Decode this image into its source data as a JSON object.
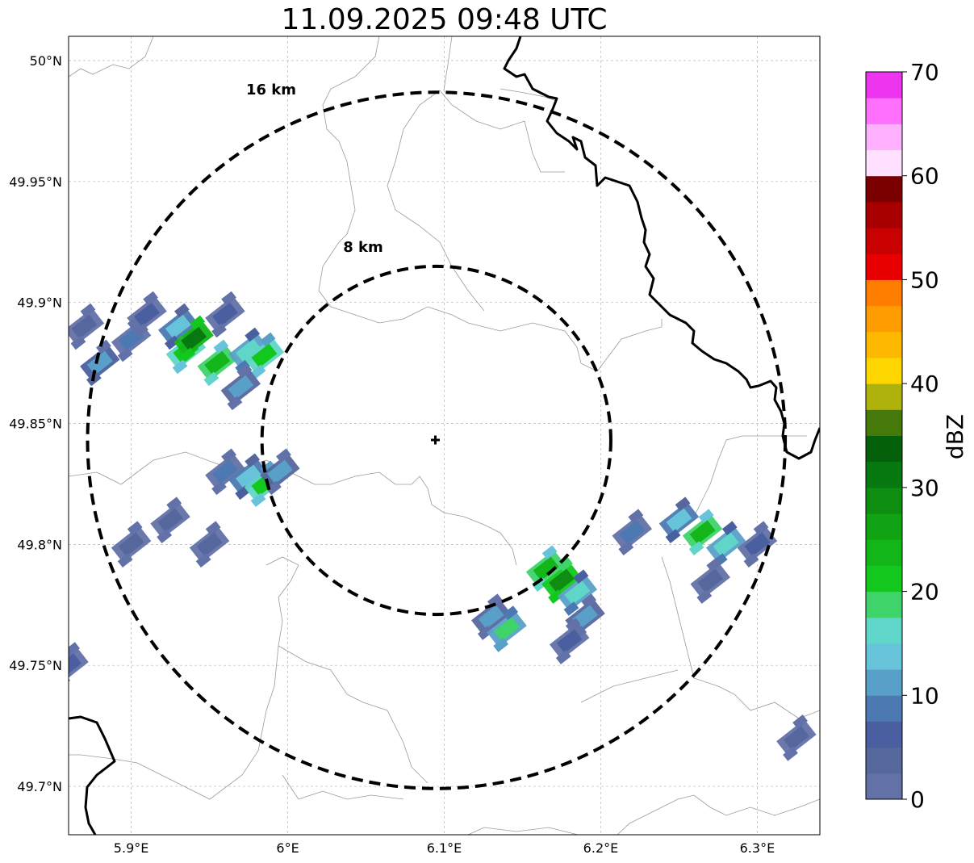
{
  "title": "11.09.2025 09:48 UTC",
  "map": {
    "lon_range": [
      5.86,
      6.34
    ],
    "lat_range": [
      49.68,
      50.01
    ],
    "lon_ticks": [
      {
        "value": 5.9,
        "label": "5.9°E"
      },
      {
        "value": 6.0,
        "label": "6°E"
      },
      {
        "value": 6.1,
        "label": "6.1°E"
      },
      {
        "value": 6.2,
        "label": "6.2°E"
      },
      {
        "value": 6.3,
        "label": "6.3°E"
      }
    ],
    "lat_ticks": [
      {
        "value": 49.7,
        "label": "49.7°N"
      },
      {
        "value": 49.75,
        "label": "49.75°N"
      },
      {
        "value": 49.8,
        "label": "49.8°N"
      },
      {
        "value": 49.85,
        "label": "49.85°N"
      },
      {
        "value": 49.9,
        "label": "49.9°N"
      },
      {
        "value": 49.95,
        "label": "49.95°N"
      },
      {
        "value": 50.0,
        "label": "50°N"
      }
    ],
    "center": {
      "lon": 6.095,
      "lat": 49.843,
      "marker": "plus"
    },
    "rings": [
      {
        "radius_km": 8,
        "label": "8 km"
      },
      {
        "radius_km": 16,
        "label": "16 km"
      }
    ],
    "echo_cells": [
      {
        "lon": 5.87,
        "lat": 49.89,
        "dbz": 4
      },
      {
        "lon": 5.88,
        "lat": 49.875,
        "dbz": 12
      },
      {
        "lon": 5.9,
        "lat": 49.885,
        "dbz": 8
      },
      {
        "lon": 5.91,
        "lat": 49.895,
        "dbz": 5
      },
      {
        "lon": 5.93,
        "lat": 49.89,
        "dbz": 14
      },
      {
        "lon": 5.935,
        "lat": 49.88,
        "dbz": 22
      },
      {
        "lon": 5.94,
        "lat": 49.885,
        "dbz": 30
      },
      {
        "lon": 5.955,
        "lat": 49.875,
        "dbz": 24
      },
      {
        "lon": 5.96,
        "lat": 49.895,
        "dbz": 6
      },
      {
        "lon": 5.975,
        "lat": 49.88,
        "dbz": 16
      },
      {
        "lon": 5.985,
        "lat": 49.878,
        "dbz": 22
      },
      {
        "lon": 5.97,
        "lat": 49.865,
        "dbz": 10
      },
      {
        "lon": 5.96,
        "lat": 49.83,
        "dbz": 8
      },
      {
        "lon": 5.975,
        "lat": 49.828,
        "dbz": 14
      },
      {
        "lon": 5.985,
        "lat": 49.825,
        "dbz": 22
      },
      {
        "lon": 5.995,
        "lat": 49.83,
        "dbz": 10
      },
      {
        "lon": 5.9,
        "lat": 49.8,
        "dbz": 4
      },
      {
        "lon": 5.925,
        "lat": 49.81,
        "dbz": 4
      },
      {
        "lon": 5.95,
        "lat": 49.8,
        "dbz": 3
      },
      {
        "lon": 5.86,
        "lat": 49.75,
        "dbz": 6
      },
      {
        "lon": 6.13,
        "lat": 49.77,
        "dbz": 10
      },
      {
        "lon": 6.14,
        "lat": 49.765,
        "dbz": 18
      },
      {
        "lon": 6.165,
        "lat": 49.79,
        "dbz": 24
      },
      {
        "lon": 6.175,
        "lat": 49.785,
        "dbz": 28
      },
      {
        "lon": 6.185,
        "lat": 49.78,
        "dbz": 16
      },
      {
        "lon": 6.19,
        "lat": 49.77,
        "dbz": 10
      },
      {
        "lon": 6.18,
        "lat": 49.76,
        "dbz": 6
      },
      {
        "lon": 6.22,
        "lat": 49.805,
        "dbz": 8
      },
      {
        "lon": 6.25,
        "lat": 49.81,
        "dbz": 14
      },
      {
        "lon": 6.265,
        "lat": 49.805,
        "dbz": 24
      },
      {
        "lon": 6.28,
        "lat": 49.8,
        "dbz": 16
      },
      {
        "lon": 6.3,
        "lat": 49.8,
        "dbz": 6
      },
      {
        "lon": 6.27,
        "lat": 49.785,
        "dbz": 4
      },
      {
        "lon": 6.325,
        "lat": 49.72,
        "dbz": 4
      }
    ]
  },
  "colorbar": {
    "label": "dBZ",
    "ticks": [
      "0",
      "10",
      "20",
      "30",
      "40",
      "50",
      "60",
      "70"
    ],
    "colors": [
      "#6271a8",
      "#56679e",
      "#4a5fa0",
      "#4c79b2",
      "#58a0c8",
      "#66c3da",
      "#60d6c8",
      "#3fd46a",
      "#12c81c",
      "#12b618",
      "#10a414",
      "#0d8e10",
      "#087810",
      "#05600a",
      "#457a0a",
      "#aeb20a",
      "#ffd700",
      "#ffb800",
      "#ff9c00",
      "#ff7e00",
      "#e80000",
      "#c80000",
      "#a80000",
      "#7a0000",
      "#ffe0ff",
      "#ffb0ff",
      "#ff70ff",
      "#ef34ef"
    ]
  }
}
